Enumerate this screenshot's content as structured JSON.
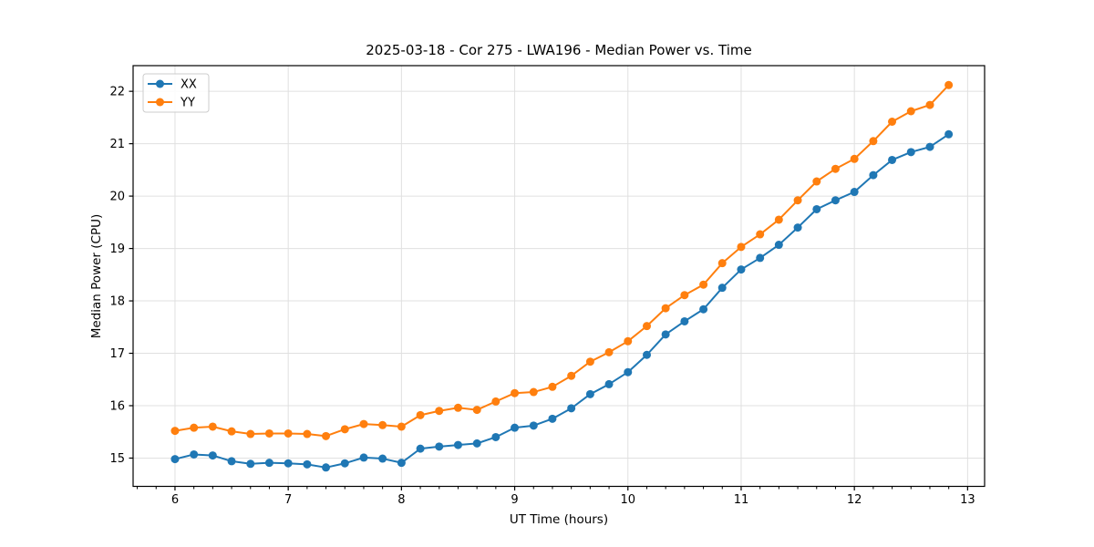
{
  "figure": {
    "background": "#ffffff",
    "frame_color": "#000000",
    "grid_color": "#e0e0e0"
  },
  "chart_data": {
    "type": "line",
    "title": "2025-03-18 - Cor 275 - LWA196 - Median Power vs. Time",
    "xlabel": "UT Time (hours)",
    "ylabel": "Median Power (CPU)",
    "xlim": [
      5.63,
      13.15
    ],
    "ylim": [
      14.46,
      22.49
    ],
    "xticks": [
      6,
      7,
      8,
      9,
      10,
      11,
      12,
      13
    ],
    "yticks": [
      15,
      16,
      17,
      18,
      19,
      20,
      21,
      22
    ],
    "x_minor_tick_step": 0.1667,
    "grid": true,
    "legend": {
      "position": "upper-left",
      "labels": [
        "XX",
        "YY"
      ]
    },
    "x": [
      6.0,
      6.167,
      6.333,
      6.5,
      6.667,
      6.833,
      7.0,
      7.167,
      7.333,
      7.5,
      7.667,
      7.833,
      8.0,
      8.167,
      8.333,
      8.5,
      8.667,
      8.833,
      9.0,
      9.167,
      9.333,
      9.5,
      9.667,
      9.833,
      10.0,
      10.167,
      10.333,
      10.5,
      10.667,
      10.833,
      11.0,
      11.167,
      11.333,
      11.5,
      11.667,
      11.833,
      12.0,
      12.167,
      12.333,
      12.5,
      12.667,
      12.833
    ],
    "series": [
      {
        "name": "XX",
        "color": "#1f77b4",
        "marker": "circle",
        "values": [
          14.98,
          15.07,
          15.05,
          14.94,
          14.89,
          14.91,
          14.9,
          14.88,
          14.82,
          14.9,
          15.01,
          14.99,
          14.91,
          15.18,
          15.22,
          15.25,
          15.28,
          15.4,
          15.58,
          15.62,
          15.75,
          15.95,
          16.22,
          16.41,
          16.64,
          16.97,
          17.36,
          17.61,
          17.84,
          18.25,
          18.6,
          18.82,
          19.07,
          19.4,
          19.75,
          19.92,
          20.08,
          20.4,
          20.69,
          20.84,
          20.94,
          21.18
        ]
      },
      {
        "name": "YY",
        "color": "#ff7f0e",
        "marker": "circle",
        "values": [
          15.52,
          15.58,
          15.6,
          15.51,
          15.46,
          15.47,
          15.47,
          15.46,
          15.42,
          15.55,
          15.65,
          15.63,
          15.6,
          15.82,
          15.9,
          15.96,
          15.92,
          16.08,
          16.24,
          16.26,
          16.36,
          16.57,
          16.84,
          17.02,
          17.23,
          17.52,
          17.86,
          18.11,
          18.31,
          18.72,
          19.03,
          19.27,
          19.55,
          19.92,
          20.28,
          20.52,
          20.71,
          21.05,
          21.42,
          21.62,
          21.74,
          22.12
        ]
      }
    ]
  }
}
